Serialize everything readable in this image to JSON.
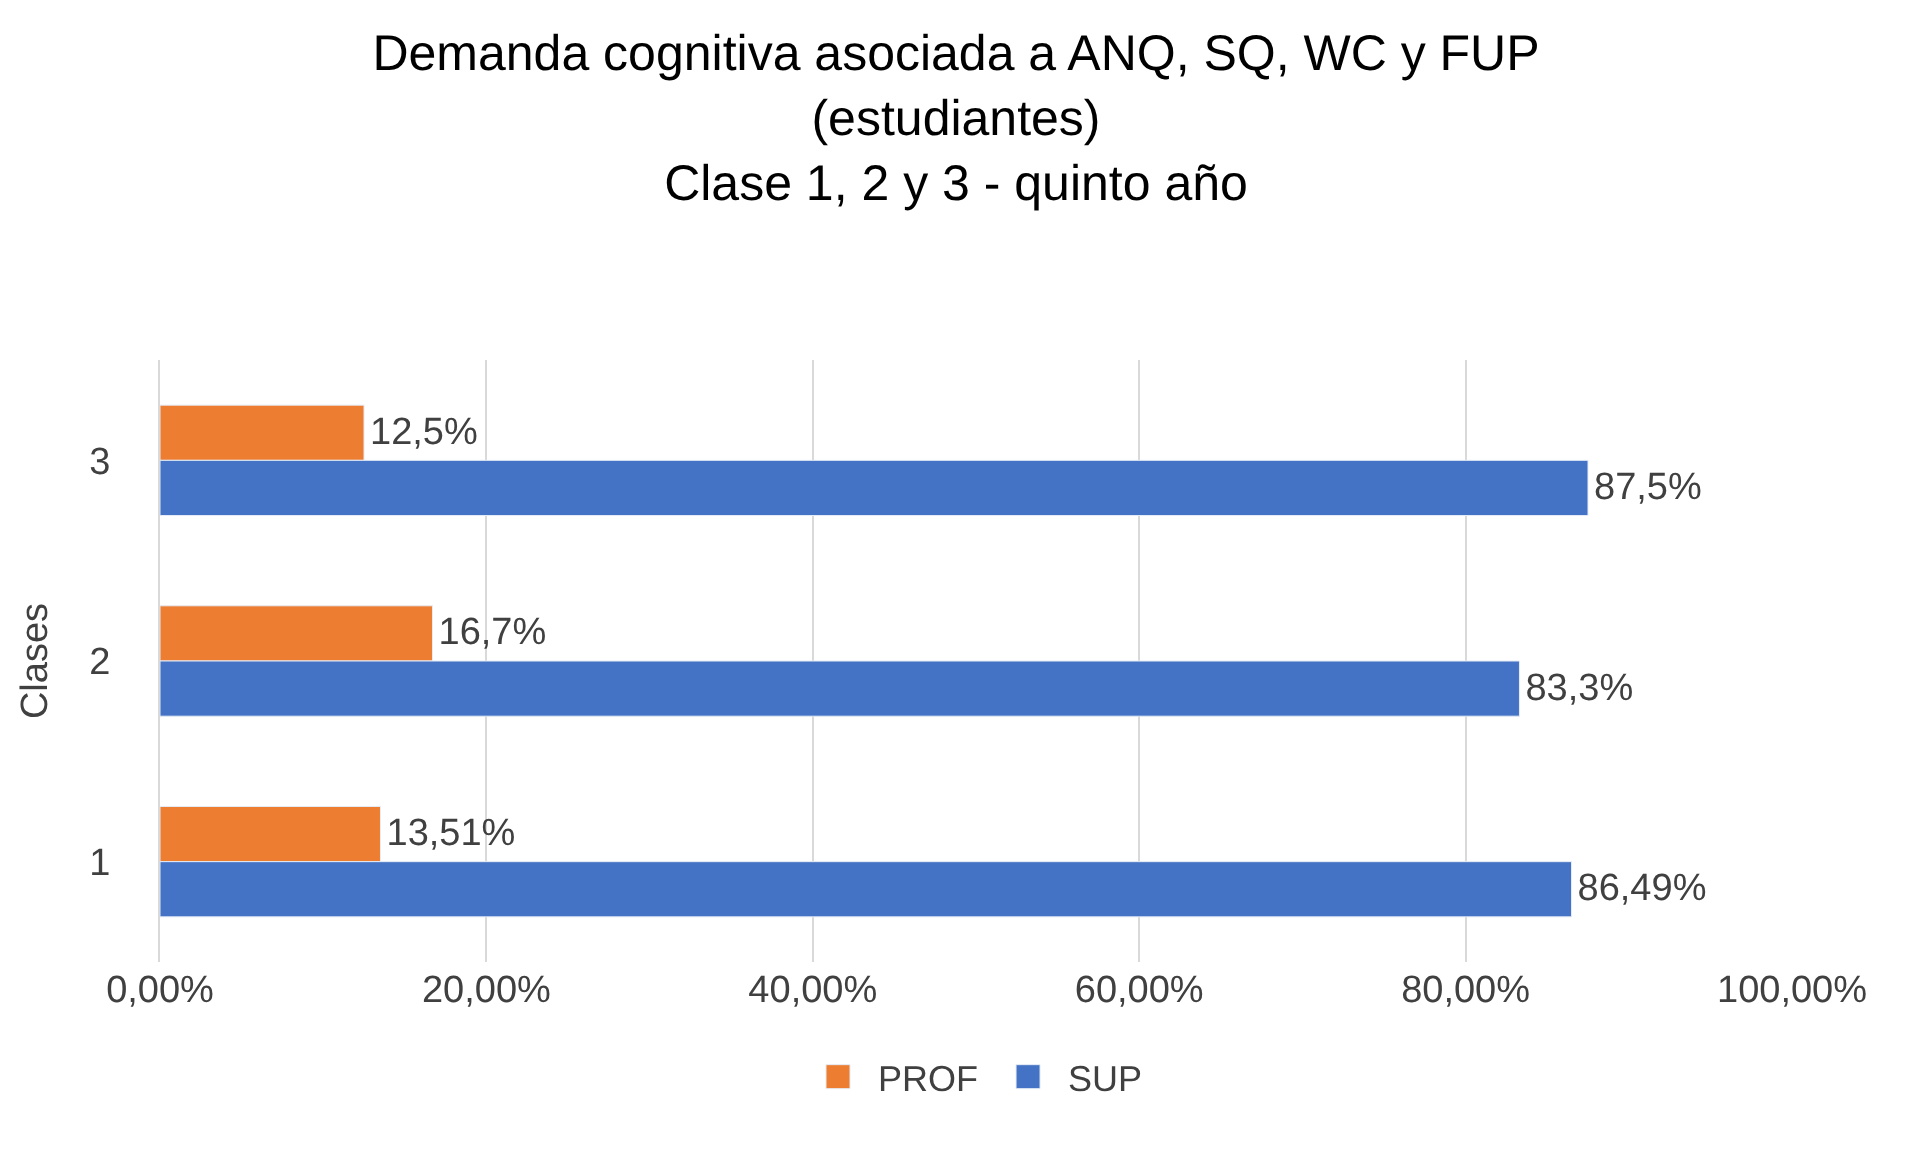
{
  "chart_data": {
    "type": "bar",
    "orientation": "horizontal",
    "title": "Demanda cognitiva asociada a ANQ, SQ, WC y FUP\n(estudiantes)\nClase 1, 2 y 3 - quinto año",
    "ylabel": "Clases",
    "categories": [
      "3",
      "2",
      "1"
    ],
    "series": [
      {
        "name": "PROF",
        "color": "#ed7d31",
        "values": [
          12.5,
          16.7,
          13.51
        ],
        "value_labels": [
          "12,5%",
          "16,7%",
          "13,51%"
        ]
      },
      {
        "name": "SUP",
        "color": "#4472c4",
        "values": [
          87.5,
          83.3,
          86.49
        ],
        "value_labels": [
          "87,5%",
          "83,3%",
          "86,49%"
        ]
      }
    ],
    "xlim": [
      0,
      100
    ],
    "xticks": [
      {
        "value": 0,
        "label": "0,00%"
      },
      {
        "value": 20,
        "label": "20,00%"
      },
      {
        "value": 40,
        "label": "40,00%"
      },
      {
        "value": 60,
        "label": "60,00%"
      },
      {
        "value": 80,
        "label": "80,00%"
      },
      {
        "value": 100,
        "label": "100,00%"
      }
    ],
    "grid": "x",
    "legend": "bottom"
  }
}
